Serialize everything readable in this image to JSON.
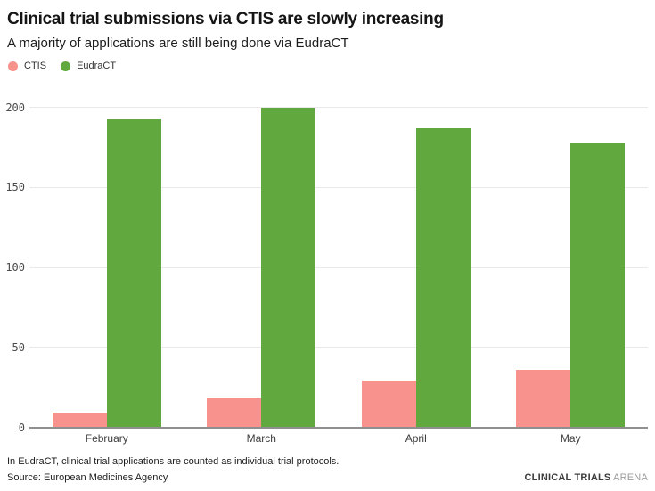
{
  "header": {
    "title": "Clinical trial submissions via CTIS are slowly increasing",
    "subtitle": "A majority of applications are still being done via EudraCT"
  },
  "chart_data": {
    "type": "bar",
    "title": "Clinical trial submissions via CTIS are slowly increasing",
    "subtitle": "A majority of applications are still being done via EudraCT",
    "categories": [
      "February",
      "March",
      "April",
      "May"
    ],
    "series": [
      {
        "name": "CTIS",
        "color": "#f8928c",
        "values": [
          9,
          18,
          29,
          36
        ]
      },
      {
        "name": "EudraCT",
        "color": "#61a83e",
        "values": [
          193,
          200,
          187,
          178
        ]
      }
    ],
    "xlabel": "",
    "ylabel": "",
    "ylim": [
      0,
      200
    ],
    "yticks": [
      0,
      50,
      100,
      150,
      200
    ],
    "grid": true,
    "legend_position": "top-left",
    "grid_color": "#e9e9e9",
    "baseline_color": "#8f8f8f"
  },
  "footer": {
    "note": "In EudraCT, clinical trial applications are counted as individual trial protocols.",
    "source": "Source: European Medicines Agency",
    "brand_bold": "CLINICAL TRIALS",
    "brand_light": "ARENA"
  }
}
